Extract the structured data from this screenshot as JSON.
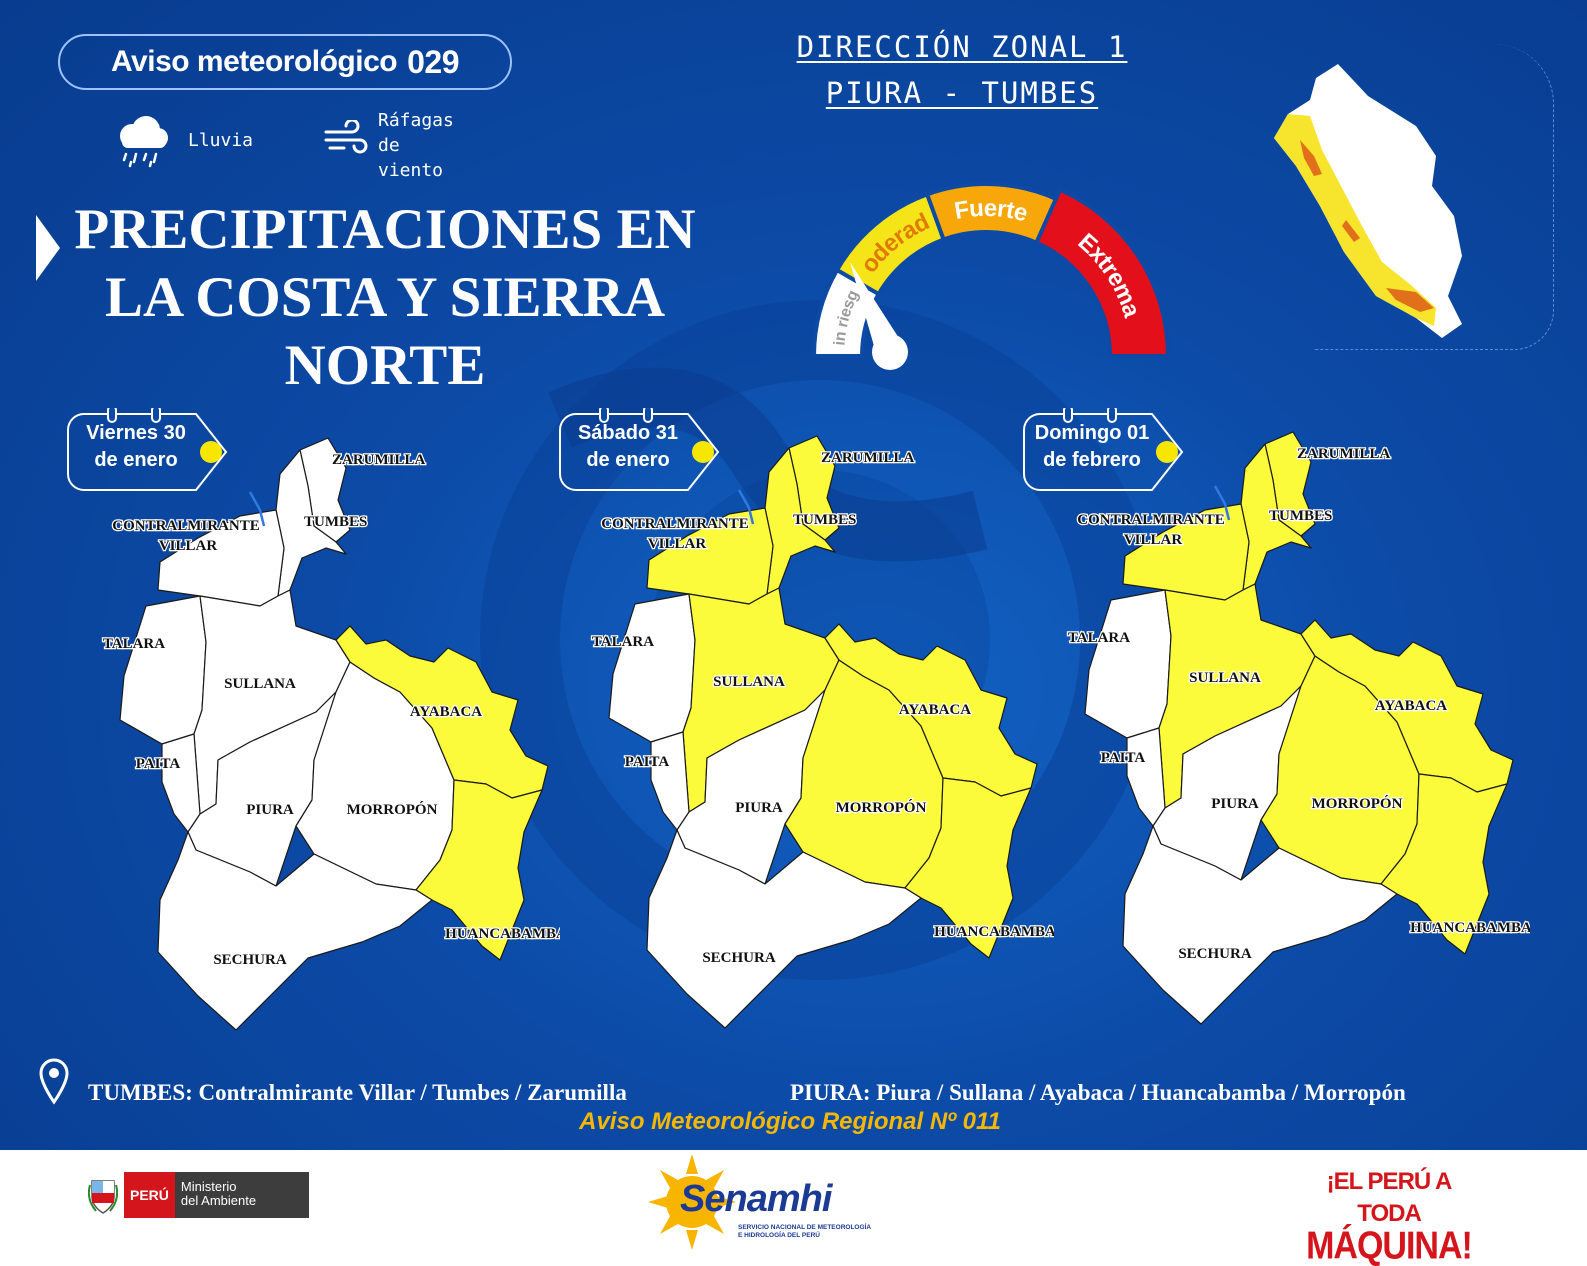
{
  "header": {
    "notice_label": "Aviso meteorológico",
    "notice_number": "029",
    "legend": {
      "rain": {
        "label": "Lluvia",
        "icon": "rain-cloud-icon"
      },
      "wind": {
        "label_lines": [
          "Ráfagas",
          "de",
          "viento"
        ],
        "icon": "wind-gust-icon"
      }
    },
    "title_lines": [
      "PRECIPITACIONES EN",
      "LA COSTA Y SIERRA",
      "NORTE"
    ],
    "zone_lines": [
      "DIRECCIÓN ZONAL 1",
      "PIURA - TUMBES"
    ]
  },
  "gauge": {
    "levels": [
      {
        "label": "Sin riesgo",
        "color": "#ffffff",
        "text_color": "#9a9a9a"
      },
      {
        "label": "Moderada",
        "color": "#f5e418",
        "text_color": "#e07b00"
      },
      {
        "label": "Fuerte",
        "color": "#f7a70a",
        "text_color": "#ffffff"
      },
      {
        "label": "Extrema",
        "color": "#e3101b",
        "text_color": "#ffffff"
      }
    ],
    "current_level": "Moderada"
  },
  "days": [
    {
      "line1": "Viernes 30",
      "line2": "de enero",
      "alert_provinces": [
        "AYABACA",
        "HUANCABAMBA"
      ]
    },
    {
      "line1": "Sábado 31",
      "line2": "de enero",
      "alert_provinces": [
        "ZARUMILLA",
        "TUMBES",
        "CONTRALMIRANTE VILLAR",
        "SULLANA",
        "AYABACA",
        "MORROPÓN",
        "HUANCABAMBA"
      ]
    },
    {
      "line1": "Domingo 01",
      "line2": "de febrero",
      "alert_provinces": [
        "ZARUMILLA",
        "TUMBES",
        "CONTRALMIRANTE VILLAR",
        "SULLANA",
        "AYABACA",
        "MORROPÓN",
        "HUANCABAMBA"
      ]
    }
  ],
  "province_labels": {
    "zarumilla": "ZARUMILLA",
    "tumbes": "TUMBES",
    "cv1": "CONTRALMIRANTE",
    "cv2": "VILLAR",
    "talara": "TALARA",
    "sullana": "SULLANA",
    "ayabaca": "AYABACA",
    "paita": "PAITA",
    "piura": "PIURA",
    "morropon": "MORROPÓN",
    "huancabamba": "HUANCABAMBA",
    "sechura": "SECHURA"
  },
  "colors": {
    "alert_yellow": "#fbfb3c",
    "no_risk": "#ffffff",
    "background_blue": "#0c4aa6",
    "accent_orange": "#f5b800"
  },
  "provinces_bar": {
    "tumbes": "TUMBES: Contralmirante Villar / Tumbes / Zarumilla",
    "piura": "PIURA: Piura / Sullana / Ayabaca / Huancabamba / Morropón"
  },
  "regional_notice": "Aviso Meteorológico Regional Nº 011",
  "footer": {
    "peru_label": "PERÚ",
    "ministry_lines": [
      "Ministerio",
      "del Ambiente"
    ],
    "senamhi_brand": "Senamhi",
    "senamhi_sub_lines": [
      "SERVICIO NACIONAL DE METEOROLOGÍA",
      "E HIDROLOGÍA DEL PERÚ"
    ],
    "slogan_lines": [
      "¡EL PERÚ A TODA",
      "MÁQUINA!"
    ]
  }
}
